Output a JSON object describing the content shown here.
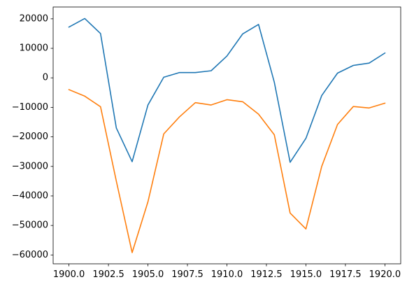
{
  "chart_data": {
    "type": "line",
    "title": "",
    "xlabel": "",
    "ylabel": "",
    "xlim": [
      1899.0,
      1921.0
    ],
    "ylim": [
      -63000,
      24000
    ],
    "grid": false,
    "x_ticks": [
      1900.0,
      1902.5,
      1905.0,
      1907.5,
      1910.0,
      1912.5,
      1915.0,
      1917.5,
      1920.0
    ],
    "x_tick_labels": [
      "1900.0",
      "1902.5",
      "1905.0",
      "1907.5",
      "1910.0",
      "1912.5",
      "1915.0",
      "1917.5",
      "1920.0"
    ],
    "y_ticks": [
      20000,
      10000,
      0,
      -10000,
      -20000,
      -30000,
      -40000,
      -50000,
      -60000
    ],
    "y_tick_labels": [
      "20000",
      "10000",
      "0",
      "−10000",
      "−20000",
      "−30000",
      "−40000",
      "−50000",
      "−60000"
    ],
    "x": [
      1900,
      1901,
      1902,
      1903,
      1904,
      1905,
      1906,
      1907,
      1908,
      1909,
      1910,
      1911,
      1912,
      1913,
      1914,
      1915,
      1916,
      1917,
      1918,
      1919,
      1920
    ],
    "series": [
      {
        "color": "#1f77b4",
        "values": [
          17200,
          20100,
          15000,
          -17000,
          -28400,
          -9200,
          200,
          1800,
          1800,
          2400,
          7400,
          14900,
          18100,
          -1500,
          -28600,
          -20500,
          -6000,
          1600,
          4200,
          5000,
          8400
        ]
      },
      {
        "color": "#ff7f0e",
        "values": [
          -4000,
          -6200,
          -9800,
          -35000,
          -59200,
          -42000,
          -19000,
          -13200,
          -8400,
          -9200,
          -7400,
          -8100,
          -12300,
          -19300,
          -45800,
          -51200,
          -30000,
          -15800,
          -9700,
          -10200,
          -8600
        ]
      }
    ]
  }
}
